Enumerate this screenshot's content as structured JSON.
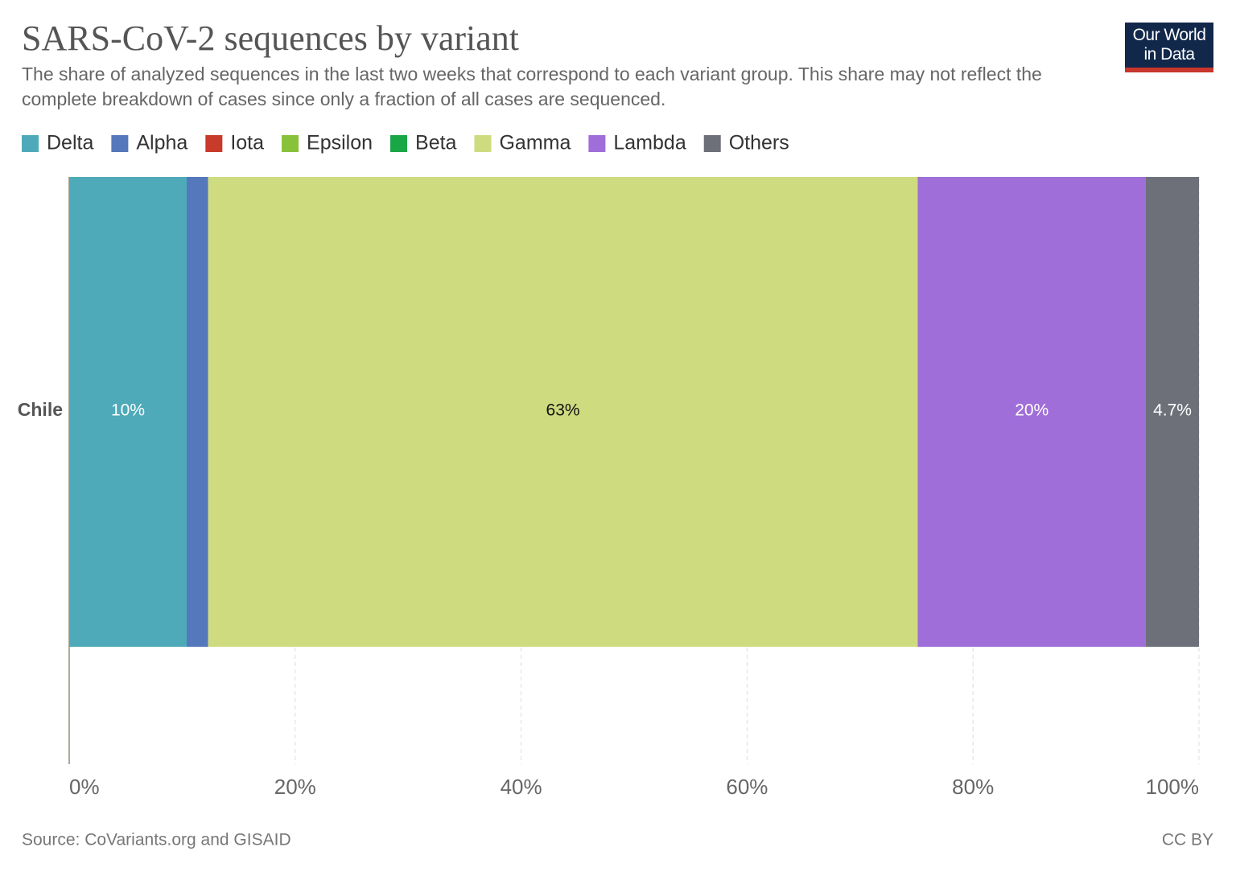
{
  "chart_data": {
    "type": "stacked-bar-horizontal",
    "title": "SARS-CoV-2 sequences by variant",
    "subtitle": "The share of analyzed sequences in the last two weeks that correspond to each variant group. This share may not reflect the complete breakdown of cases since only a fraction of all cases are sequenced.",
    "source": "Source: CoVariants.org and GISAID",
    "license": "CC BY",
    "logo": [
      "Our World",
      "in Data"
    ],
    "categories": [
      "Chile"
    ],
    "series": [
      {
        "name": "Delta",
        "color": "#4eaab9",
        "values": [
          10.4
        ],
        "value_labels": [
          "10%"
        ]
      },
      {
        "name": "Alpha",
        "color": "#5577bb",
        "values": [
          1.9
        ]
      },
      {
        "name": "Iota",
        "color": "#c83a2a",
        "values": [
          0
        ]
      },
      {
        "name": "Epsilon",
        "color": "#88c23a",
        "values": [
          0
        ]
      },
      {
        "name": "Beta",
        "color": "#19a646",
        "values": [
          0
        ]
      },
      {
        "name": "Gamma",
        "color": "#cfdb7f",
        "values": [
          62.8
        ],
        "value_labels": [
          "63%"
        ]
      },
      {
        "name": "Lambda",
        "color": "#a06ed8",
        "values": [
          20.2
        ],
        "value_labels": [
          "20%"
        ]
      },
      {
        "name": "Others",
        "color": "#6e7079",
        "values": [
          4.7
        ],
        "value_labels": [
          "4.7%"
        ]
      }
    ],
    "xlim": [
      0,
      100
    ],
    "xticks": [
      {
        "value": 0,
        "label": "0%"
      },
      {
        "value": 20,
        "label": "20%"
      },
      {
        "value": 40,
        "label": "40%"
      },
      {
        "value": 60,
        "label": "60%"
      },
      {
        "value": 80,
        "label": "80%"
      },
      {
        "value": 100,
        "label": "100%"
      }
    ],
    "grid": true
  }
}
